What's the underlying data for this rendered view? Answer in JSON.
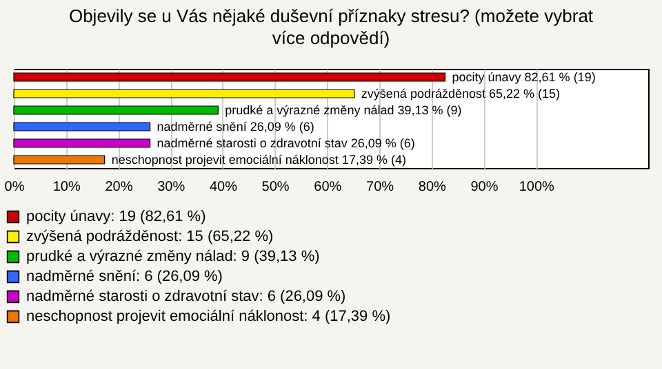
{
  "chart_data": {
    "type": "bar",
    "orientation": "horizontal",
    "title": "Objevily se u Vás nějaké duševní příznaky stresu? (možete vybrat více odpovědí)",
    "categories": [
      "pocity únavy",
      "zvýšená podrážděnost",
      "prudké a výrazné změny nálad",
      "nadměrné snění",
      "nadměrné starosti o zdravotní stav",
      "neschopnost projevit emociální náklonost"
    ],
    "values": [
      82.61,
      65.22,
      39.13,
      26.09,
      26.09,
      17.39
    ],
    "value_labels": [
      "82,61 % (19)",
      "65,22 % (15)",
      "39,13 % (9)",
      "26,09 % (6)",
      "26,09 % (6)",
      "17,39 % (4)"
    ],
    "colors": [
      "#cc0000",
      "#ffee00",
      "#00bb00",
      "#3366ff",
      "#cc00cc",
      "#ee7700"
    ],
    "xlim": [
      0,
      121.5
    ],
    "xticks": [
      {
        "value": 0,
        "label": "0%"
      },
      {
        "value": 10,
        "label": "10%"
      },
      {
        "value": 20,
        "label": "20%"
      },
      {
        "value": 30,
        "label": "30%"
      },
      {
        "value": 40,
        "label": "40%"
      },
      {
        "value": 50,
        "label": "50%"
      },
      {
        "value": 60,
        "label": "60%"
      },
      {
        "value": 70,
        "label": "70%"
      },
      {
        "value": 80,
        "label": "80%"
      },
      {
        "value": 90,
        "label": "90%"
      },
      {
        "value": 100,
        "label": "100%"
      }
    ],
    "grid": "x",
    "annotations": [
      "pocity únavy: 19 (82,61 %)",
      "zvýšená podrážděnost: 15 (65,22 %)",
      "prudké a výrazné změny nálad: 9 (39,13 %)",
      "nadměrné snění: 6 (26,09 %)",
      "nadměrné starosti o zdravotní stav: 6 (26,09 %)",
      "neschopnost projevit emociální náklonost: 4 (17,39 %)"
    ]
  }
}
